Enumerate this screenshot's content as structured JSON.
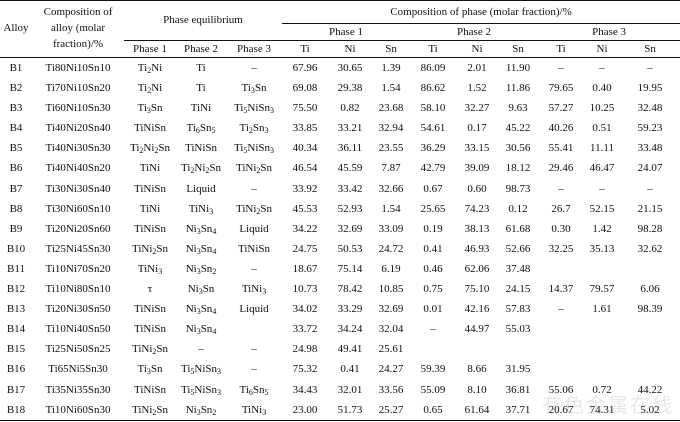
{
  "header": {
    "alloy": "Alloy",
    "composition": "Composition of alloy (molar fraction)/%",
    "phase_equilibrium": "Phase equilibrium",
    "composition_of_phase": "Composition of phase (molar fraction)/%",
    "pe_phases": [
      "Phase 1",
      "Phase 2",
      "Phase 3"
    ],
    "comp_phases": [
      "Phase 1",
      "Phase 2",
      "Phase 3"
    ],
    "elements": [
      "Ti",
      "Ni",
      "Sn",
      "Ti",
      "Ni",
      "Sn",
      "Ti",
      "Ni",
      "Sn"
    ]
  },
  "rows": [
    {
      "alloy": "B1",
      "comp": "Ti80Ni10Sn10",
      "p1": "Ti<sub>2</sub>Ni",
      "p2": "Ti",
      "p3": "–",
      "v": [
        "67.96",
        "30.65",
        "1.39",
        "86.09",
        "2.01",
        "11.90",
        "–",
        "–",
        "–"
      ]
    },
    {
      "alloy": "B2",
      "comp": "Ti70Ni10Sn20",
      "p1": "Ti<sub>2</sub>Ni",
      "p2": "Ti",
      "p3": "Ti<sub>3</sub>Sn",
      "v": [
        "69.08",
        "29.38",
        "1.54",
        "86.62",
        "1.52",
        "11.86",
        "79.65",
        "0.40",
        "19.95"
      ]
    },
    {
      "alloy": "B3",
      "comp": "Ti60Ni10Sn30",
      "p1": "Ti<sub>3</sub>Sn",
      "p2": "TiNi",
      "p3": "Ti<sub>5</sub>NiSn<sub>3</sub>",
      "v": [
        "75.50",
        "0.82",
        "23.68",
        "58.10",
        "32.27",
        "9.63",
        "57.27",
        "10.25",
        "32.48"
      ]
    },
    {
      "alloy": "B4",
      "comp": "Ti40Ni20Sn40",
      "p1": "TiNiSn",
      "p2": "Ti<sub>6</sub>Sn<sub>5</sub>",
      "p3": "Ti<sub>2</sub>Sn<sub>3</sub>",
      "v": [
        "33.85",
        "33.21",
        "32.94",
        "54.61",
        "0.17",
        "45.22",
        "40.26",
        "0.51",
        "59.23"
      ]
    },
    {
      "alloy": "B5",
      "comp": "Ti40Ni30Sn30",
      "p1": "Ti<sub>2</sub>Ni<sub>2</sub>Sn",
      "p2": "TiNiSn",
      "p3": "Ti<sub>5</sub>NiSn<sub>3</sub>",
      "v": [
        "40.34",
        "36.11",
        "23.55",
        "36.29",
        "33.15",
        "30.56",
        "55.41",
        "11.11",
        "33.48"
      ]
    },
    {
      "alloy": "B6",
      "comp": "Ti40Ni40Sn20",
      "p1": "TiNi",
      "p2": "Ti<sub>2</sub>Ni<sub>2</sub>Sn",
      "p3": "TiNi<sub>2</sub>Sn",
      "v": [
        "46.54",
        "45.59",
        "7.87",
        "42.79",
        "39.09",
        "18.12",
        "29.46",
        "46.47",
        "24.07"
      ]
    },
    {
      "alloy": "B7",
      "comp": "Ti30Ni30Sn40",
      "p1": "TiNiSn",
      "p2": "Liquid",
      "p3": "–",
      "v": [
        "33.92",
        "33.42",
        "32.66",
        "0.67",
        "0.60",
        "98.73",
        "–",
        "–",
        "–"
      ]
    },
    {
      "alloy": "B8",
      "comp": "Ti30Ni60Sn10",
      "p1": "TiNi",
      "p2": "TiNi<sub>3</sub>",
      "p3": "TiNi<sub>2</sub>Sn",
      "v": [
        "45.53",
        "52.93",
        "1.54",
        "25.65",
        "74.23",
        "0.12",
        "26.7",
        "52.15",
        "21.15"
      ]
    },
    {
      "alloy": "B9",
      "comp": "Ti20Ni20Sn60",
      "p1": "TiNiSn",
      "p2": "Ni<sub>3</sub>Sn<sub>4</sub>",
      "p3": "Liquid",
      "v": [
        "34.22",
        "32.69",
        "33.09",
        "0.19",
        "38.13",
        "61.68",
        "0.30",
        "1.42",
        "98.28"
      ]
    },
    {
      "alloy": "B10",
      "comp": "Ti25Ni45Sn30",
      "p1": "TiNi<sub>2</sub>Sn",
      "p2": "Ni<sub>3</sub>Sn<sub>4</sub>",
      "p3": "TiNiSn",
      "v": [
        "24.75",
        "50.53",
        "24.72",
        "0.41",
        "46.93",
        "52.66",
        "32.25",
        "35.13",
        "32.62"
      ]
    },
    {
      "alloy": "B11",
      "comp": "Ti10Ni70Sn20",
      "p1": "TiNi<sub>3</sub>",
      "p2": "Ni<sub>3</sub>Sn<sub>2</sub>",
      "p3": "–",
      "v": [
        "18.67",
        "75.14",
        "6.19",
        "0.46",
        "62.06",
        "37.48",
        "",
        "",
        ""
      ]
    },
    {
      "alloy": "B12",
      "comp": "Ti10Ni80Sn10",
      "p1": "τ",
      "p2": "Ni<sub>3</sub>Sn",
      "p3": "TiNi<sub>3</sub>",
      "v": [
        "10.73",
        "78.42",
        "10.85",
        "0.75",
        "75.10",
        "24.15",
        "14.37",
        "79.57",
        "6.06"
      ]
    },
    {
      "alloy": "B13",
      "comp": "Ti20Ni30Sn50",
      "p1": "TiNiSn",
      "p2": "Ni<sub>3</sub>Sn<sub>4</sub>",
      "p3": "Liquid",
      "v": [
        "34.02",
        "33.29",
        "32.69",
        "0.01",
        "42.16",
        "57.83",
        "–",
        "1.61",
        "98.39"
      ]
    },
    {
      "alloy": "B14",
      "comp": "Ti10Ni40Sn50",
      "p1": "TiNiSn",
      "p2": "Ni<sub>3</sub>Sn<sub>4</sub>",
      "p3": "",
      "v": [
        "33.72",
        "34.24",
        "32.04",
        "–",
        "44.97",
        "55.03",
        "",
        "",
        ""
      ]
    },
    {
      "alloy": "B15",
      "comp": "Ti25Ni50Sn25",
      "p1": "TiNi<sub>2</sub>Sn",
      "p2": "–",
      "p3": "–",
      "v": [
        "24.98",
        "49.41",
        "25.61",
        "",
        "",
        "",
        "",
        "",
        ""
      ]
    },
    {
      "alloy": "B16",
      "comp": "Ti65Ni5Sn30",
      "p1": "Ti<sub>3</sub>Sn",
      "p2": "Ti<sub>5</sub>NiSn<sub>3</sub>",
      "p3": "–",
      "v": [
        "75.32",
        "0.41",
        "24.27",
        "59.39",
        "8.66",
        "31.95",
        "",
        "",
        ""
      ]
    },
    {
      "alloy": "B17",
      "comp": "Ti35Ni35Sn30",
      "p1": "TiNiSn",
      "p2": "Ti<sub>5</sub>NiSn<sub>3</sub>",
      "p3": "Ti<sub>6</sub>Sn<sub>5</sub>",
      "v": [
        "34.43",
        "32.01",
        "33.56",
        "55.09",
        "8.10",
        "36.81",
        "55.06",
        "0.72",
        "44.22"
      ]
    },
    {
      "alloy": "B18",
      "comp": "Ti10Ni60Sn30",
      "p1": "TiNi<sub>2</sub>Sn",
      "p2": "Ni<sub>3</sub>Sn<sub>2</sub>",
      "p3": "TiNi<sub>3</sub>",
      "v": [
        "23.00",
        "51.73",
        "25.27",
        "0.65",
        "61.64",
        "37.71",
        "20.67",
        "74.31",
        "5.02"
      ]
    }
  ],
  "watermark": "有色金属在线"
}
